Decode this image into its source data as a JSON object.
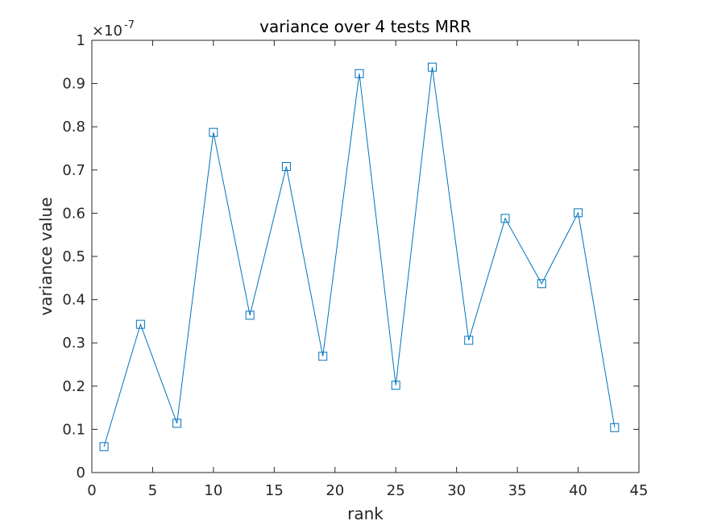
{
  "chart_data": {
    "type": "line",
    "title": "variance over 4 tests MRR",
    "xlabel": "rank",
    "ylabel": "variance value",
    "exponent_label": "×10",
    "exponent_value": "-7",
    "xlim": [
      0,
      45
    ],
    "ylim": [
      0,
      1
    ],
    "xticks": [
      "0",
      "5",
      "10",
      "15",
      "20",
      "25",
      "30",
      "35",
      "40",
      "45"
    ],
    "yticks": [
      "0",
      "0.1",
      "0.2",
      "0.3",
      "0.4",
      "0.5",
      "0.6",
      "0.7",
      "0.8",
      "0.9",
      "1"
    ],
    "grid": false,
    "marker": "square",
    "series_color": "#0072BD",
    "series": [
      {
        "x": [
          1,
          4,
          7,
          10,
          13,
          16,
          19,
          22,
          25,
          28,
          31,
          34,
          37,
          40,
          43
        ],
        "values": [
          0.06,
          0.343,
          0.114,
          0.787,
          0.364,
          0.708,
          0.269,
          0.923,
          0.202,
          0.938,
          0.306,
          0.588,
          0.437,
          0.601,
          0.104
        ]
      }
    ]
  }
}
